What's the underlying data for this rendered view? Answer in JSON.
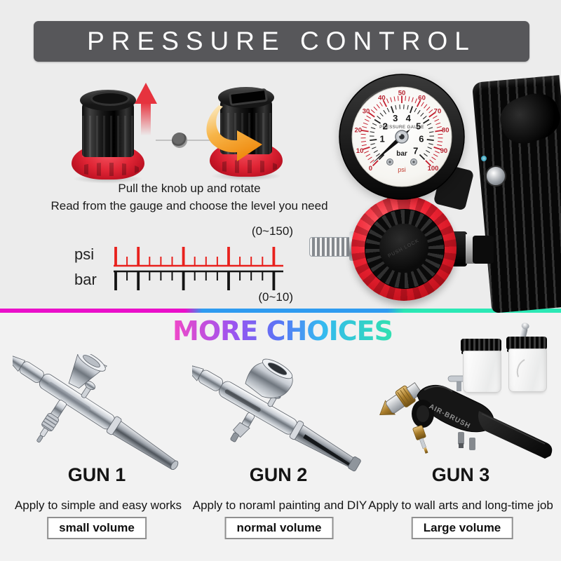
{
  "header": {
    "title": "PRESSURE CONTROL"
  },
  "instructions": {
    "line1": "Pull the knob up and rotate",
    "line2": "Read from the gauge and choose the level you need"
  },
  "scale": {
    "psi_label": "psi",
    "bar_label": "bar",
    "psi_range": "(0~150)",
    "bar_range": "(0~10)"
  },
  "gauge": {
    "outer_numbers": [
      "0",
      "10",
      "20",
      "30",
      "40",
      "50",
      "60",
      "70",
      "80",
      "90",
      "100"
    ],
    "inner_numbers": [
      "1",
      "2",
      "3",
      "4",
      "5",
      "6",
      "7"
    ],
    "face_text": "PRESSURE GAUGE",
    "unit_inner": "bar",
    "unit_outer": "psi"
  },
  "regulator": {
    "knob_text": "PUSH LOCK"
  },
  "more_choices": {
    "title": "MORE CHOICES"
  },
  "guns": [
    {
      "name": "GUN 1",
      "description": "Apply to simple and easy works",
      "tag": "small volume"
    },
    {
      "name": "GUN 2",
      "description": "Apply to noraml painting and DIY",
      "tag": "normal volume"
    },
    {
      "name": "GUN 3",
      "description": "Apply to wall arts and long-time job",
      "tag": "Large volume",
      "body_text": "AIR-BRUSH"
    }
  ],
  "colors": {
    "banner_bg": "#57575a",
    "background_top": "#ececec",
    "background_bottom": "#f2f2f2",
    "accent_red": "#e6333e",
    "arrow_orange": "#f59b1e",
    "ruler_red": "#e8211d",
    "ruler_black": "#141414",
    "knob_red": "#e02535",
    "divider": [
      "#ea0fca",
      "#2f9bf0",
      "#2be8b5"
    ],
    "title_gradient": [
      "#f048c8",
      "#9a55f0",
      "#5a74f5",
      "#35b9f0",
      "#31e0b0"
    ]
  }
}
